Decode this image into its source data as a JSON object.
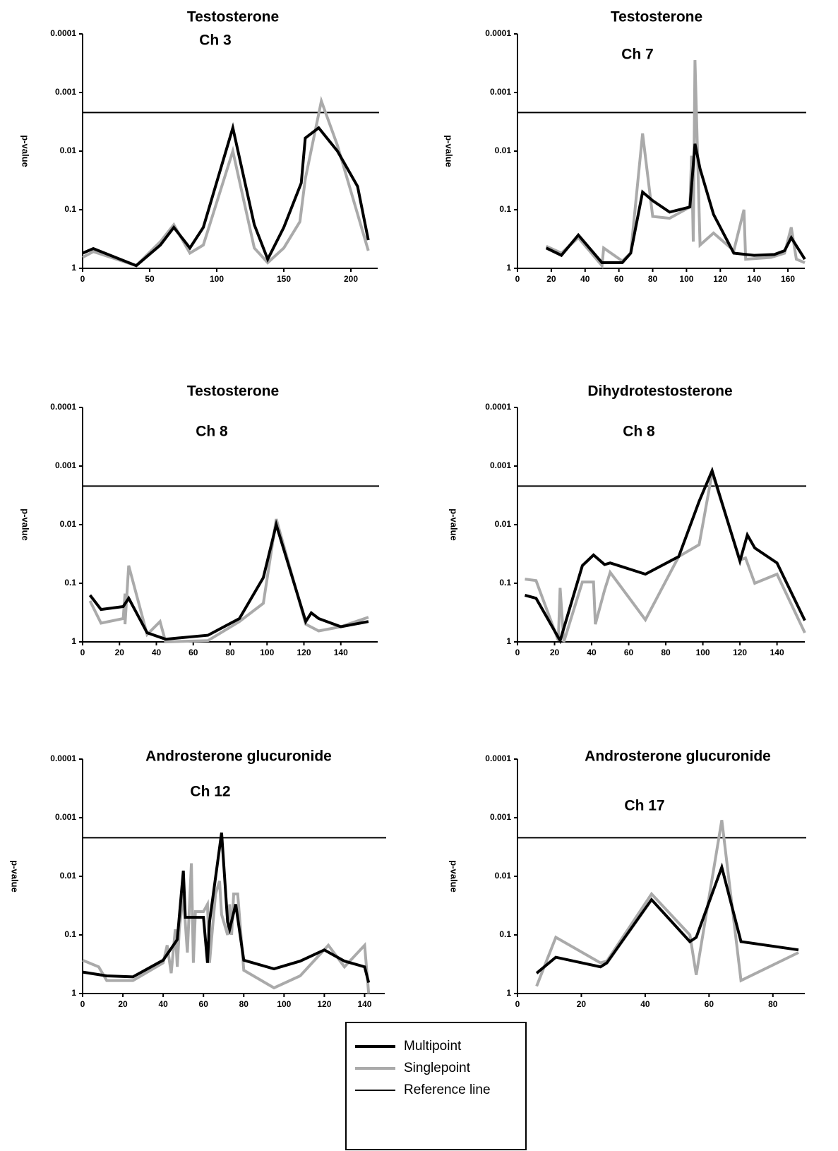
{
  "chart_data": [
    {
      "type": "line",
      "title": "Testosterone",
      "subtitle": "Ch 3",
      "y_label": "p-value",
      "log_y": true,
      "xlim": [
        0,
        220
      ],
      "xticks": [
        0,
        50,
        100,
        150,
        200
      ],
      "ylim": [
        1,
        0.0001
      ],
      "yticks": [
        0.0001,
        0.001,
        0.01,
        0.1,
        1
      ],
      "reference_line": {
        "name": "Reference line",
        "value": 0.0022,
        "color": "#000000"
      },
      "series": [
        {
          "name": "Multipoint",
          "color": "#000000",
          "x": [
            0,
            8,
            40,
            58,
            68,
            80,
            90,
            112,
            128,
            138,
            150,
            163,
            166,
            176,
            190,
            205,
            213
          ],
          "values": [
            0.55,
            0.46,
            0.9,
            0.4,
            0.2,
            0.45,
            0.2,
            0.004,
            0.18,
            0.7,
            0.2,
            0.035,
            0.006,
            0.004,
            0.01,
            0.04,
            0.33
          ]
        },
        {
          "name": "Singlepoint",
          "color": "#aaaaaa",
          "x": [
            0,
            8,
            40,
            58,
            68,
            80,
            90,
            112,
            128,
            138,
            150,
            162,
            166,
            178,
            190,
            213
          ],
          "values": [
            0.65,
            0.52,
            0.9,
            0.35,
            0.18,
            0.55,
            0.4,
            0.01,
            0.45,
            0.8,
            0.45,
            0.16,
            0.03,
            0.0014,
            0.008,
            0.5
          ]
        }
      ]
    },
    {
      "type": "line",
      "title": "Testosterone",
      "subtitle": "Ch 7",
      "y_label": "p-value",
      "log_y": true,
      "xlim": [
        0,
        170
      ],
      "xticks": [
        0,
        20,
        40,
        60,
        80,
        100,
        120,
        140,
        160
      ],
      "ylim": [
        1,
        0.0001
      ],
      "yticks": [
        0.0001,
        0.001,
        0.01,
        0.1,
        1
      ],
      "reference_line": {
        "name": "Reference line",
        "value": 0.0022,
        "color": "#000000"
      },
      "series": [
        {
          "name": "Multipoint",
          "color": "#000000",
          "x": [
            17,
            26,
            36,
            50,
            62,
            67,
            74,
            80,
            90,
            102,
            105,
            108,
            116,
            128,
            140,
            152,
            158,
            162,
            170
          ],
          "values": [
            0.45,
            0.6,
            0.27,
            0.8,
            0.8,
            0.55,
            0.05,
            0.07,
            0.11,
            0.09,
            0.0075,
            0.02,
            0.12,
            0.55,
            0.6,
            0.58,
            0.5,
            0.3,
            0.7
          ]
        },
        {
          "name": "Singlepoint",
          "color": "#aaaaaa",
          "x": [
            17,
            26,
            36,
            50,
            51,
            62,
            67,
            74,
            80,
            90,
            102,
            103,
            104,
            105,
            108,
            116,
            128,
            134,
            135,
            150,
            158,
            162,
            165,
            170
          ],
          "values": [
            0.42,
            0.55,
            0.3,
            0.9,
            0.45,
            0.75,
            0.55,
            0.005,
            0.13,
            0.14,
            0.09,
            0.012,
            0.35,
            0.00028,
            0.4,
            0.25,
            0.5,
            0.1,
            0.7,
            0.65,
            0.55,
            0.2,
            0.7,
            0.8
          ]
        }
      ]
    },
    {
      "type": "line",
      "title": "Testosterone",
      "subtitle": "Ch 8",
      "y_label": "p-value",
      "log_y": true,
      "xlim": [
        0,
        160
      ],
      "xticks": [
        0,
        20,
        40,
        60,
        80,
        100,
        120,
        140
      ],
      "ylim": [
        1,
        0.0001
      ],
      "yticks": [
        0.0001,
        0.001,
        0.01,
        0.1,
        1
      ],
      "reference_line": {
        "name": "Reference line",
        "value": 0.0022,
        "color": "#000000"
      },
      "series": [
        {
          "name": "Multipoint",
          "color": "#000000",
          "x": [
            4,
            10,
            22,
            25,
            35,
            45,
            68,
            85,
            98,
            105,
            121,
            124,
            128,
            140,
            155
          ],
          "values": [
            0.16,
            0.28,
            0.25,
            0.18,
            0.7,
            0.9,
            0.77,
            0.4,
            0.08,
            0.01,
            0.45,
            0.32,
            0.4,
            0.55,
            0.45
          ]
        },
        {
          "name": "Singlepoint",
          "color": "#aaaaaa",
          "x": [
            4,
            10,
            22,
            23,
            23,
            25,
            35,
            42,
            45,
            68,
            85,
            98,
            105,
            121,
            128,
            140,
            155
          ],
          "values": [
            0.2,
            0.48,
            0.4,
            0.15,
            0.5,
            0.05,
            0.75,
            0.45,
            1.0,
            0.95,
            0.45,
            0.22,
            0.008,
            0.5,
            0.65,
            0.55,
            0.38
          ]
        }
      ]
    },
    {
      "type": "line",
      "title": "Dihydrotestosterone",
      "subtitle": "Ch 8",
      "y_label": "p-value",
      "log_y": true,
      "xlim": [
        0,
        155
      ],
      "xticks": [
        0,
        20,
        40,
        60,
        80,
        100,
        120,
        140
      ],
      "ylim": [
        1,
        0.0001
      ],
      "yticks": [
        0.0001,
        0.001,
        0.01,
        0.1,
        1
      ],
      "reference_line": {
        "name": "Reference line",
        "value": 0.0022,
        "color": "#000000"
      },
      "series": [
        {
          "name": "Multipoint",
          "color": "#000000",
          "x": [
            4,
            10,
            23,
            35,
            41,
            47,
            50,
            69,
            87,
            98,
            105,
            120,
            124,
            128,
            140,
            155
          ],
          "values": [
            0.16,
            0.18,
            0.95,
            0.05,
            0.033,
            0.048,
            0.045,
            0.07,
            0.035,
            0.004,
            0.0012,
            0.042,
            0.015,
            0.025,
            0.045,
            0.43
          ]
        },
        {
          "name": "Singlepoint",
          "color": "#aaaaaa",
          "x": [
            4,
            10,
            22,
            23,
            25,
            35,
            41,
            42,
            47,
            50,
            69,
            87,
            98,
            105,
            120,
            123,
            128,
            140,
            155
          ],
          "values": [
            0.085,
            0.09,
            0.95,
            0.12,
            1.0,
            0.095,
            0.095,
            0.5,
            0.13,
            0.065,
            0.42,
            0.035,
            0.022,
            0.0013,
            0.04,
            0.037,
            0.1,
            0.07,
            0.7
          ]
        }
      ]
    },
    {
      "type": "line",
      "title": "Androsterone glucuronide",
      "subtitle": "Ch 12",
      "y_label": "p-value",
      "log_y": true,
      "xlim": [
        0,
        150
      ],
      "xticks": [
        0,
        20,
        40,
        60,
        80,
        100,
        120,
        140
      ],
      "ylim": [
        1,
        0.0001
      ],
      "yticks": [
        0.0001,
        0.001,
        0.01,
        0.1,
        1
      ],
      "reference_line": {
        "name": "Reference line",
        "value": 0.0022,
        "color": "#000000"
      },
      "series": [
        {
          "name": "Multipoint",
          "color": "#000000",
          "x": [
            0,
            12,
            25,
            40,
            44,
            47,
            50,
            51,
            54,
            60,
            62,
            63,
            69,
            72,
            73,
            76,
            80,
            95,
            108,
            120,
            130,
            140,
            142
          ],
          "values": [
            0.43,
            0.5,
            0.52,
            0.27,
            0.17,
            0.12,
            0.008,
            0.05,
            0.05,
            0.05,
            0.3,
            0.06,
            0.0018,
            0.06,
            0.08,
            0.03,
            0.27,
            0.38,
            0.28,
            0.18,
            0.28,
            0.35,
            0.65
          ]
        },
        {
          "name": "Singlepoint",
          "color": "#aaaaaa",
          "x": [
            0,
            8,
            12,
            25,
            40,
            42,
            44,
            46,
            47,
            48,
            50,
            52,
            54,
            55,
            56,
            60,
            62,
            63,
            64,
            66,
            68,
            69,
            72,
            73,
            74,
            75,
            77,
            80,
            95,
            108,
            122,
            130,
            140,
            142
          ],
          "values": [
            0.27,
            0.35,
            0.6,
            0.6,
            0.3,
            0.15,
            0.45,
            0.08,
            0.35,
            0.08,
            0.02,
            0.2,
            0.006,
            0.3,
            0.04,
            0.04,
            0.03,
            0.3,
            0.12,
            0.02,
            0.012,
            0.045,
            0.1,
            0.03,
            0.1,
            0.02,
            0.02,
            0.4,
            0.8,
            0.5,
            0.15,
            0.35,
            0.15,
            1.0
          ]
        }
      ]
    },
    {
      "type": "line",
      "title": "Androsterone glucuronide",
      "subtitle": "Ch 17",
      "y_label": "p-value",
      "log_y": true,
      "xlim": [
        0,
        90
      ],
      "xticks": [
        0,
        20,
        40,
        60,
        80
      ],
      "ylim": [
        1,
        0.0001
      ],
      "yticks": [
        0.0001,
        0.001,
        0.01,
        0.1,
        1
      ],
      "reference_line": {
        "name": "Reference line",
        "value": 0.0022,
        "color": "#000000"
      },
      "series": [
        {
          "name": "Multipoint",
          "color": "#000000",
          "x": [
            6,
            12,
            26,
            28,
            42,
            54,
            56,
            64,
            70,
            88
          ],
          "values": [
            0.45,
            0.24,
            0.35,
            0.3,
            0.025,
            0.13,
            0.11,
            0.007,
            0.13,
            0.18
          ]
        },
        {
          "name": "Singlepoint",
          "color": "#aaaaaa",
          "x": [
            6,
            12,
            26,
            28,
            42,
            54,
            56,
            64,
            70,
            88
          ],
          "values": [
            0.75,
            0.11,
            0.3,
            0.28,
            0.02,
            0.1,
            0.48,
            0.0011,
            0.6,
            0.2
          ]
        }
      ]
    }
  ]
}
